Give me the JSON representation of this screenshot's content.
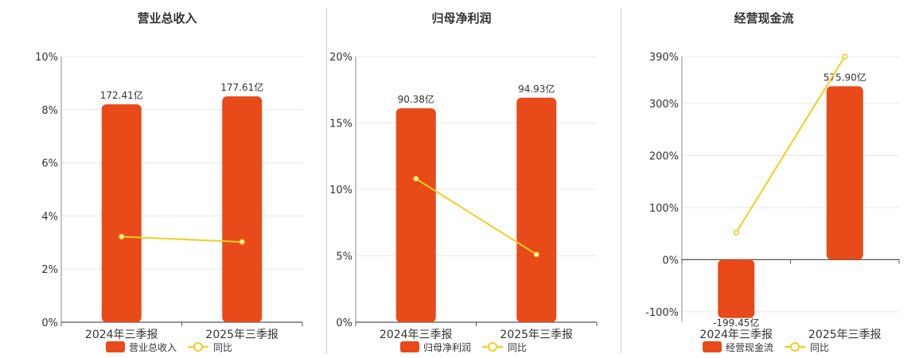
{
  "chart_data": [
    {
      "type": "bar",
      "title": "营业总收入",
      "categories": [
        "2024年三季报",
        "2025年三季报"
      ],
      "series": [
        {
          "name": "营业总收入",
          "kind": "bar",
          "values": [
            8.2,
            8.5
          ],
          "labels": [
            "172.41亿",
            "177.61亿"
          ]
        },
        {
          "name": "同比",
          "kind": "line",
          "values": [
            3.22,
            3.02
          ]
        }
      ],
      "yticks": [
        "10%",
        "8%",
        "6%",
        "4%",
        "2%",
        "0%"
      ],
      "ylim": [
        0,
        10
      ],
      "grid": true,
      "legend_position": "bottom",
      "colors": {
        "bar": "#e84a1a",
        "line": "#f2cf1d"
      }
    },
    {
      "type": "bar",
      "title": "归母净利润",
      "categories": [
        "2024年三季报",
        "2025年三季报"
      ],
      "series": [
        {
          "name": "归母净利润",
          "kind": "bar",
          "values": [
            16.1,
            16.9
          ],
          "labels": [
            "90.38亿",
            "94.93亿"
          ]
        },
        {
          "name": "同比",
          "kind": "line",
          "values": [
            10.8,
            5.1
          ]
        }
      ],
      "yticks": [
        "20%",
        "15%",
        "10%",
        "5%",
        "0%"
      ],
      "ylim": [
        0,
        20
      ],
      "grid": true,
      "legend_position": "bottom",
      "colors": {
        "bar": "#e84a1a",
        "line": "#f2cf1d"
      }
    },
    {
      "type": "bar",
      "title": "经营现金流",
      "categories": [
        "2024年三季报",
        "2025年三季报"
      ],
      "series": [
        {
          "name": "经营现金流",
          "kind": "bar",
          "values": [
            -112,
            333
          ],
          "labels": [
            "-199.45亿",
            "575.90亿"
          ]
        },
        {
          "name": "同比",
          "kind": "line",
          "values": [
            52,
            390
          ]
        }
      ],
      "yticks": [
        "390%",
        "300%",
        "200%",
        "100%",
        "0%",
        "-100%"
      ],
      "ylim": [
        -120,
        390
      ],
      "grid": true,
      "legend_position": "bottom",
      "colors": {
        "bar": "#e84a1a",
        "line": "#f2cf1d"
      }
    }
  ]
}
